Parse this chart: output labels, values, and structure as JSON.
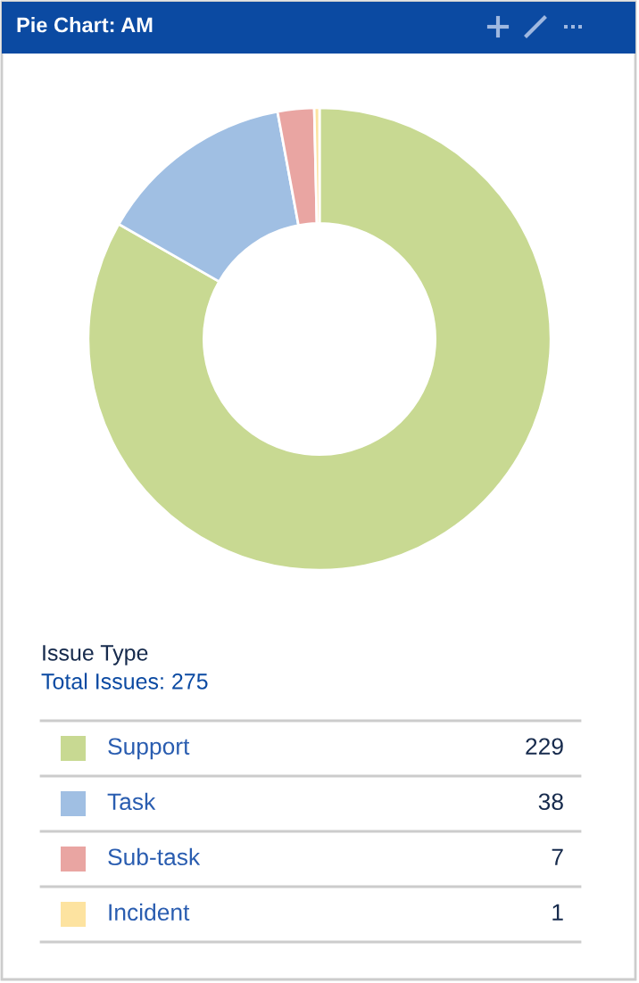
{
  "chart_data": {
    "type": "donut",
    "title": "Pie Chart: AM",
    "categories": [
      "Support",
      "Task",
      "Sub-task",
      "Incident"
    ],
    "values": [
      229,
      38,
      7,
      1
    ],
    "colors": [
      "#c8d992",
      "#a0bfe3",
      "#e9a5a2",
      "#fde3a0"
    ],
    "legend_title": "Issue Type",
    "annotations": [
      "Total Issues: 275"
    ],
    "data_labels": true,
    "legend": "bottom"
  }
}
